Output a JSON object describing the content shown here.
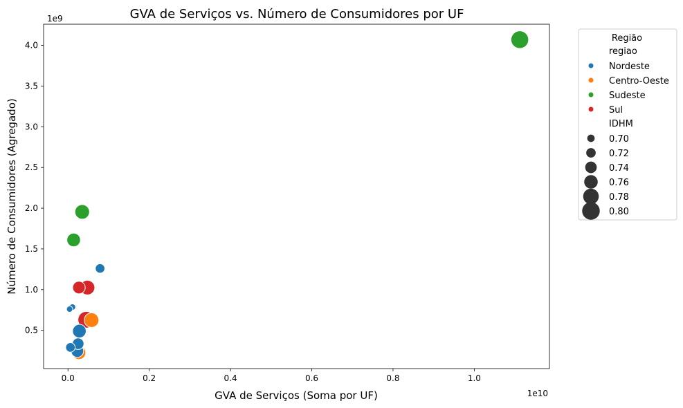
{
  "chart_data": {
    "type": "scatter",
    "title": "GVA de Serviços vs. Número de Consumidores por UF",
    "xlabel": "GVA de Serviços (Soma por UF)",
    "ylabel": "Número de Consumidores (Agregado)",
    "x_offset_label": "1e10",
    "y_offset_label": "1e9",
    "x_unit": 10000000000,
    "y_unit": 1000000000,
    "xlim": [
      -0.06,
      1.185
    ],
    "ylim": [
      0.03,
      4.26
    ],
    "xticks": [
      0.0,
      0.2,
      0.4,
      0.6,
      0.8,
      1.0
    ],
    "xtick_labels": [
      "0.0",
      "0.2",
      "0.4",
      "0.6",
      "0.8",
      "1.0"
    ],
    "yticks": [
      0.5,
      1.0,
      1.5,
      2.0,
      2.5,
      3.0,
      3.5,
      4.0
    ],
    "ytick_labels": [
      "0.5",
      "1.0",
      "1.5",
      "2.0",
      "2.5",
      "3.0",
      "3.5",
      "4.0"
    ],
    "grid": false,
    "legend": {
      "title": "Região",
      "placement": "outside-top-right",
      "hue_title": "regiao",
      "hue_entries": [
        {
          "name": "Nordeste",
          "color": "#1f77b4"
        },
        {
          "name": "Centro-Oeste",
          "color": "#ff7f0e"
        },
        {
          "name": "Sudeste",
          "color": "#2ca02c"
        },
        {
          "name": "Sul",
          "color": "#d62728"
        }
      ],
      "size_title": "IDHM",
      "size_entries": [
        {
          "label": "0.70",
          "value": 0.7
        },
        {
          "label": "0.72",
          "value": 0.72
        },
        {
          "label": "0.74",
          "value": 0.74
        },
        {
          "label": "0.76",
          "value": 0.76
        },
        {
          "label": "0.78",
          "value": 0.78
        },
        {
          "label": "0.80",
          "value": 0.8
        }
      ]
    },
    "size_range": [
      0.688,
      0.81
    ],
    "points": [
      {
        "regiao": "Sudeste",
        "x": 1.112,
        "y": 4.07,
        "idhm": 0.8
      },
      {
        "regiao": "Sudeste",
        "x": 0.035,
        "y": 1.955,
        "idhm": 0.77
      },
      {
        "regiao": "Sudeste",
        "x": 0.014,
        "y": 1.61,
        "idhm": 0.76
      },
      {
        "regiao": "Nordeste",
        "x": 0.079,
        "y": 1.26,
        "idhm": 0.72
      },
      {
        "regiao": "Sul",
        "x": 0.048,
        "y": 1.025,
        "idhm": 0.77
      },
      {
        "regiao": "Sul",
        "x": 0.027,
        "y": 1.025,
        "idhm": 0.75
      },
      {
        "regiao": "Nordeste",
        "x": 0.011,
        "y": 0.785,
        "idhm": 0.69
      },
      {
        "regiao": "Nordeste",
        "x": 0.004,
        "y": 0.76,
        "idhm": 0.688
      },
      {
        "regiao": "Centro-Oeste",
        "x": 0.058,
        "y": 0.625,
        "idhm": 0.77
      },
      {
        "regiao": "Sul",
        "x": 0.045,
        "y": 0.63,
        "idhm": 0.79
      },
      {
        "regiao": "Nordeste",
        "x": 0.028,
        "y": 0.49,
        "idhm": 0.76
      },
      {
        "regiao": "Nordeste",
        "x": 0.025,
        "y": 0.335,
        "idhm": 0.74
      },
      {
        "regiao": "Nordeste",
        "x": 0.006,
        "y": 0.29,
        "idhm": 0.72
      },
      {
        "regiao": "Centro-Oeste",
        "x": 0.027,
        "y": 0.225,
        "idhm": 0.76
      },
      {
        "regiao": "Nordeste",
        "x": 0.023,
        "y": 0.245,
        "idhm": 0.75
      }
    ]
  }
}
